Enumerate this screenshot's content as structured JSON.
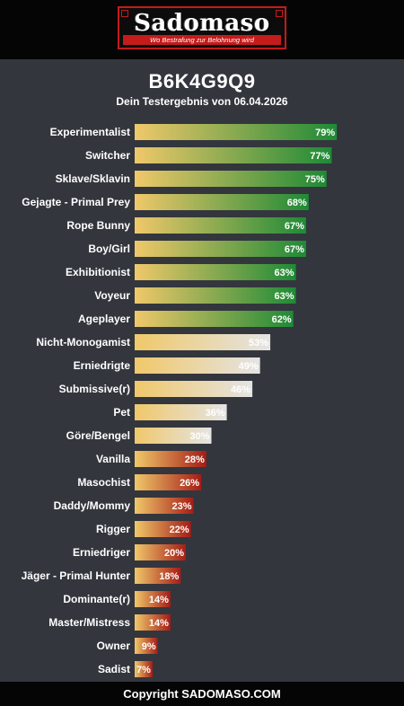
{
  "header": {
    "logo_text": "Sadomaso",
    "tagline": "Wo Bestrafung zur Belohnung wird"
  },
  "result": {
    "title": "B6K4G9Q9",
    "subtitle": "Dein Testergebnis von 06.04.2026"
  },
  "footer": {
    "copyright": "Copyright SADOMASO.COM"
  },
  "colors": {
    "page_background": "#33363d",
    "bar_start": "#f0c86a",
    "high_end": "#1e8a36",
    "mid_end": "#e4e4e4",
    "low_end": "#a51c16"
  },
  "chart_data": {
    "type": "bar",
    "orientation": "horizontal",
    "unit": "%",
    "xlim": [
      0,
      100
    ],
    "grid": false,
    "legend": "none",
    "categories": [
      "Experimentalist",
      "Switcher",
      "Sklave/Sklavin",
      "Gejagte - Primal Prey",
      "Rope Bunny",
      "Boy/Girl",
      "Exhibitionist",
      "Voyeur",
      "Ageplayer",
      "Nicht-Monogamist",
      "Erniedrigte",
      "Submissive(r)",
      "Pet",
      "Göre/Bengel",
      "Vanilla",
      "Masochist",
      "Daddy/Mommy",
      "Rigger",
      "Erniedriger",
      "Jäger - Primal Hunter",
      "Dominante(r)",
      "Master/Mistress",
      "Owner",
      "Sadist"
    ],
    "values": [
      79,
      77,
      75,
      68,
      67,
      67,
      63,
      63,
      62,
      53,
      49,
      46,
      36,
      30,
      28,
      26,
      23,
      22,
      20,
      18,
      14,
      14,
      9,
      7
    ],
    "labels": [
      "79%",
      "77%",
      "75%",
      "68%",
      "67%",
      "67%",
      "63%",
      "63%",
      "62%",
      "53%",
      "49%",
      "46%",
      "36%",
      "30%",
      "28%",
      "26%",
      "23%",
      "22%",
      "20%",
      "18%",
      "14%",
      "14%",
      "9%",
      "7%"
    ]
  }
}
